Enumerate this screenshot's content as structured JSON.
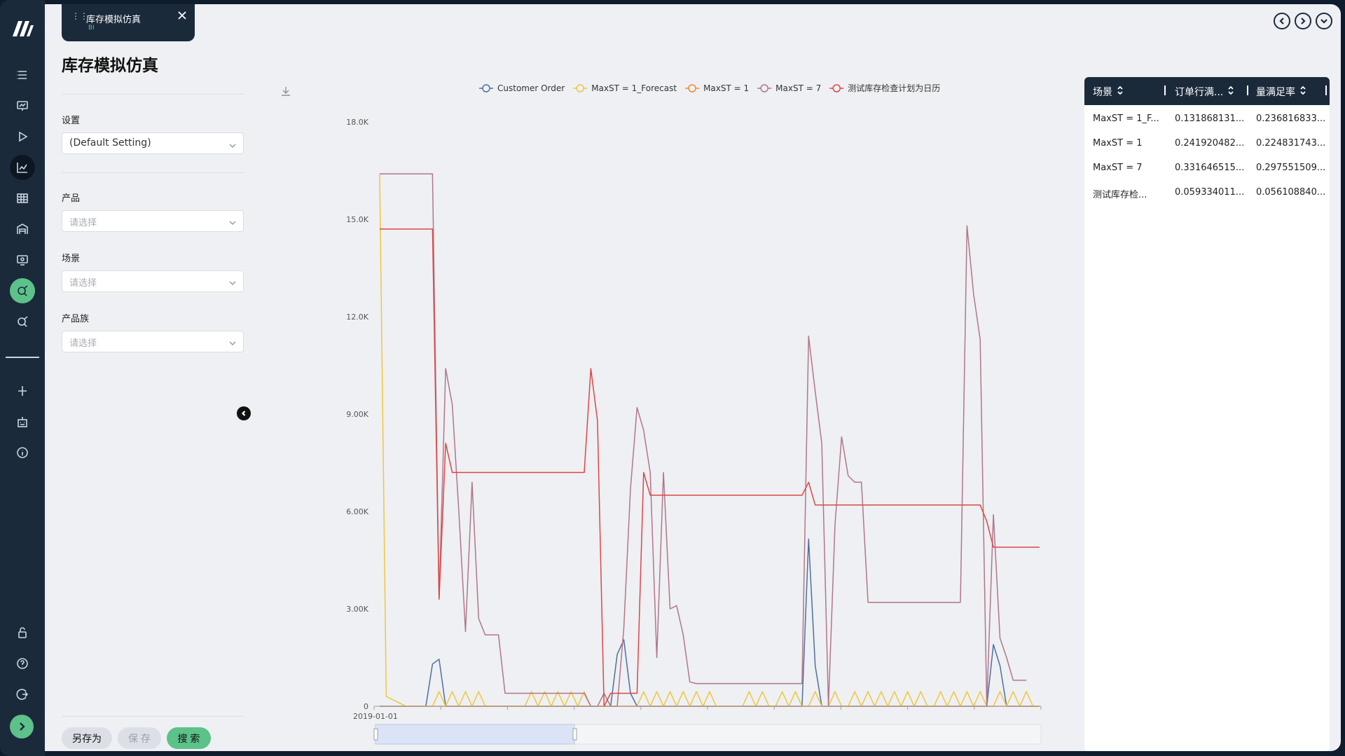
{
  "tab": {
    "title": "库存模拟仿真",
    "subtitle": "BI"
  },
  "page": {
    "title": "库存模拟仿真"
  },
  "filters": {
    "setting": {
      "label": "设置",
      "value": "(Default Setting)"
    },
    "product": {
      "label": "产品",
      "placeholder": "请选择"
    },
    "scenario": {
      "label": "场景",
      "placeholder": "请选择"
    },
    "family": {
      "label": "产品族",
      "placeholder": "请选择"
    }
  },
  "actions": {
    "save_as": "另存为",
    "save": "保 存",
    "search": "搜 索"
  },
  "table": {
    "headers": [
      "场景",
      "订单行满...",
      "量满足率"
    ],
    "rows": [
      [
        "MaxST = 1_F...",
        "0.131868131...",
        "0.236816833..."
      ],
      [
        "MaxST = 1",
        "0.241920482...",
        "0.224831743..."
      ],
      [
        "MaxST = 7",
        "0.331646515...",
        "0.297551509..."
      ],
      [
        "测试库存检...",
        "0.059334011...",
        "0.056108840..."
      ]
    ]
  },
  "chart_data": {
    "type": "line",
    "title": "",
    "xlabel": "",
    "ylabel": "",
    "x_start_label": "2019-01-01",
    "ylim": [
      0,
      18000
    ],
    "ytick_labels": [
      "0",
      "3.00K",
      "6.00K",
      "9.00K",
      "12.0K",
      "15.0K",
      "18.0K"
    ],
    "legend_position": "top",
    "grid": false,
    "n_points": 101,
    "series": [
      {
        "name": "Customer Order",
        "color": "#4f6f9f",
        "values": [
          0,
          0,
          0,
          0,
          0,
          0,
          0,
          0,
          1300,
          1450,
          0,
          0,
          0,
          0,
          0,
          0,
          0,
          0,
          0,
          0,
          0,
          0,
          0,
          0,
          0,
          0,
          0,
          0,
          0,
          0,
          0,
          0,
          0,
          0,
          0,
          0,
          1600,
          2050,
          400,
          0,
          0,
          0,
          0,
          0,
          0,
          0,
          0,
          0,
          0,
          0,
          0,
          0,
          0,
          0,
          0,
          0,
          0,
          0,
          0,
          0,
          0,
          0,
          0,
          0,
          0,
          5150,
          1250,
          0,
          0,
          0,
          0,
          0,
          0,
          0,
          0,
          0,
          0,
          0,
          0,
          0,
          0,
          0,
          0,
          0,
          0,
          0,
          0,
          0,
          0,
          0,
          0,
          0,
          0,
          1900,
          1250,
          0,
          0,
          0,
          0,
          0,
          0
        ]
      },
      {
        "name": "MaxST = 1_Forecast",
        "color": "#f0c63c",
        "values": [
          16400,
          300,
          200,
          100,
          0,
          0,
          0,
          0,
          0,
          450,
          0,
          450,
          0,
          450,
          0,
          450,
          0,
          0,
          0,
          0,
          0,
          0,
          0,
          450,
          0,
          450,
          0,
          450,
          0,
          450,
          0,
          450,
          0,
          0,
          0,
          0,
          0,
          0,
          0,
          0,
          450,
          0,
          450,
          0,
          450,
          0,
          450,
          0,
          450,
          0,
          450,
          0,
          0,
          0,
          0,
          0,
          450,
          0,
          450,
          0,
          0,
          450,
          0,
          450,
          0,
          0,
          450,
          0,
          0,
          450,
          0,
          0,
          450,
          0,
          450,
          0,
          450,
          0,
          450,
          0,
          450,
          0,
          450,
          0,
          0,
          450,
          0,
          450,
          0,
          450,
          0,
          450,
          0,
          0,
          450,
          0,
          450,
          0,
          450,
          0,
          0
        ]
      },
      {
        "name": "MaxST = 1",
        "color": "#ef8a2a",
        "values": [
          0,
          0,
          0,
          0,
          0,
          0,
          0,
          0,
          0,
          0,
          0,
          0,
          0,
          0,
          0,
          0,
          0,
          0,
          0,
          0,
          0,
          0,
          0,
          0,
          0,
          0,
          0,
          0,
          0,
          0,
          0,
          0,
          0,
          0,
          0,
          0,
          0,
          0,
          0,
          0,
          0,
          0,
          0,
          0,
          0,
          0,
          0,
          0,
          0,
          0,
          0,
          0,
          0,
          0,
          0,
          0,
          0,
          0,
          0,
          0,
          0,
          0,
          0,
          0,
          0,
          0,
          0,
          0,
          0,
          0,
          0,
          0,
          0,
          0,
          0,
          0,
          0,
          0,
          0,
          0,
          0,
          0,
          0,
          0,
          0,
          0,
          0,
          0,
          0,
          0,
          0,
          0,
          0,
          0,
          0,
          0,
          0,
          0,
          0,
          0,
          0
        ]
      },
      {
        "name": "MaxST = 7",
        "color": "#b27689",
        "values": [
          16400,
          16400,
          16400,
          16400,
          16400,
          16400,
          16400,
          16400,
          16400,
          3300,
          10400,
          9300,
          6000,
          2300,
          6900,
          2700,
          2200,
          2200,
          2200,
          400,
          400,
          400,
          400,
          400,
          400,
          400,
          400,
          400,
          400,
          400,
          400,
          400,
          0,
          0,
          400,
          0,
          0,
          2400,
          6700,
          9200,
          8500,
          7200,
          1500,
          7200,
          3000,
          3100,
          2200,
          750,
          700,
          700,
          700,
          700,
          700,
          700,
          700,
          700,
          700,
          700,
          700,
          700,
          700,
          700,
          700,
          700,
          700,
          11400,
          9700,
          8100,
          0,
          5600,
          8300,
          7100,
          6900,
          6900,
          3200,
          3200,
          3200,
          3200,
          3200,
          3200,
          3200,
          3200,
          3200,
          3200,
          3200,
          3200,
          3200,
          3200,
          3200,
          14800,
          12700,
          11300,
          0,
          5900,
          2100,
          1500,
          800,
          800,
          800
        ]
      },
      {
        "name": "测试库存检查计划为日历",
        "color": "#dd4646",
        "values": [
          14700,
          14700,
          14700,
          14700,
          14700,
          14700,
          14700,
          14700,
          14700,
          3300,
          8100,
          7200,
          7200,
          7200,
          7200,
          7200,
          7200,
          7200,
          7200,
          7200,
          7200,
          7200,
          7200,
          7200,
          7200,
          7200,
          7200,
          7200,
          7200,
          7200,
          7200,
          7200,
          10400,
          8800,
          0,
          400,
          400,
          400,
          400,
          400,
          7200,
          6500,
          6500,
          6500,
          6500,
          6500,
          6500,
          6500,
          6500,
          6500,
          6500,
          6500,
          6500,
          6500,
          6500,
          6500,
          6500,
          6500,
          6500,
          6500,
          6500,
          6500,
          6500,
          6500,
          6500,
          6900,
          6200,
          6200,
          6200,
          6200,
          6200,
          6200,
          6200,
          6200,
          6200,
          6200,
          6200,
          6200,
          6200,
          6200,
          6200,
          6200,
          6200,
          6200,
          6200,
          6200,
          6200,
          6200,
          6200,
          6200,
          6200,
          6200,
          5700,
          4900,
          4900,
          4900,
          4900,
          4900,
          4900,
          4900,
          4900
        ]
      }
    ]
  }
}
